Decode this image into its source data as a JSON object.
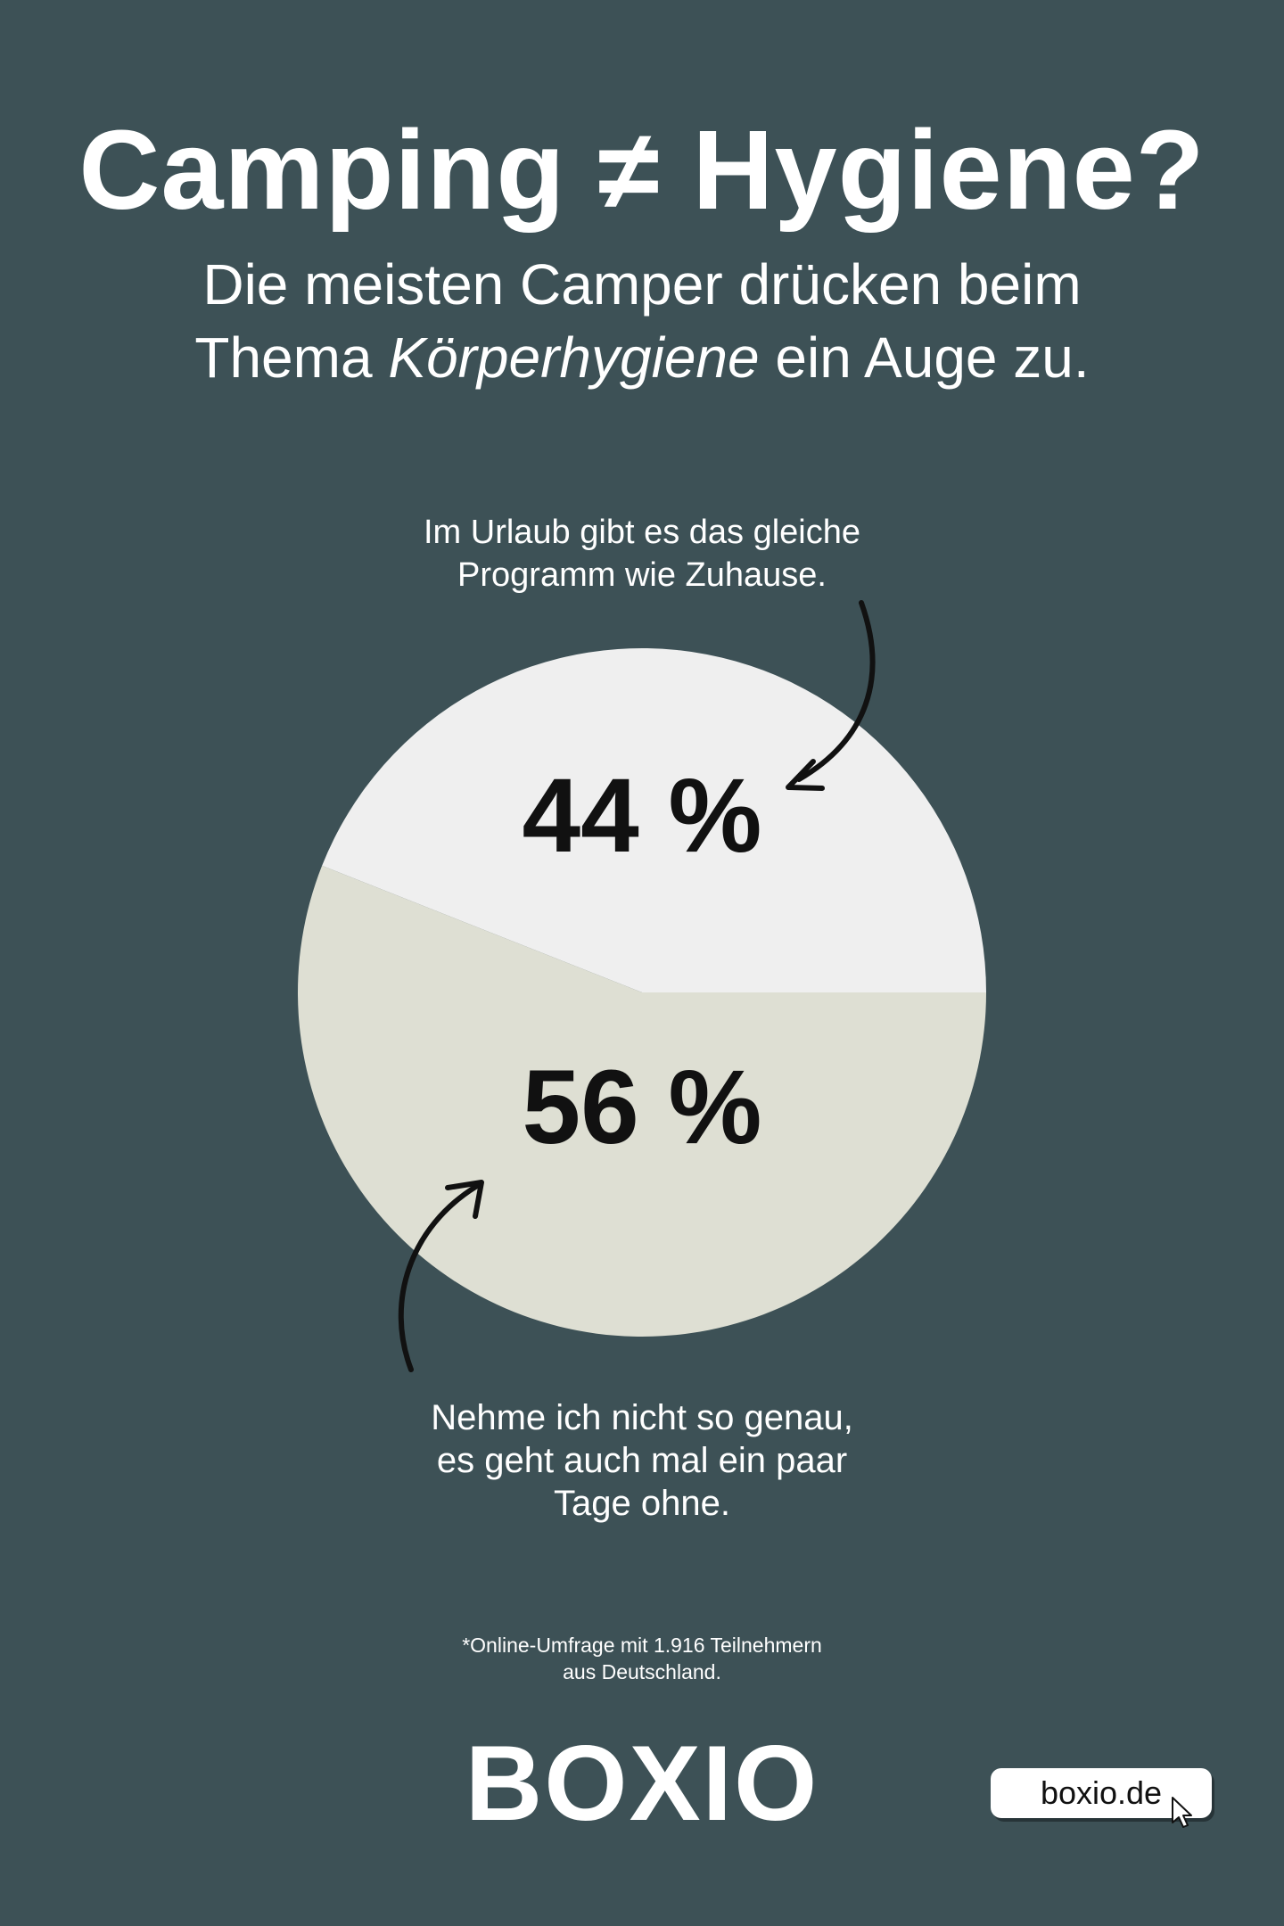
{
  "title": "Camping ≠ Hygiene?",
  "subtitle": {
    "line1": "Die meisten Camper drücken beim",
    "line2_pre": "Thema",
    "line2_em": "Körperhygiene",
    "line2_post": "ein Auge zu."
  },
  "chart_data": {
    "type": "pie",
    "slices": [
      {
        "label": "Im Urlaub gibt es das gleiche Programm wie Zuhause.",
        "value": 44,
        "value_label": "44 %",
        "color": "#efefef"
      },
      {
        "label": "Nehme ich nicht so genau, es geht auch mal ein paar Tage ohne.",
        "value": 56,
        "value_label": "56 %",
        "color": "#dedfd3"
      }
    ]
  },
  "annotations": {
    "top_line1": "Im Urlaub gibt es das gleiche",
    "top_line2": "Programm wie Zuhause.",
    "bottom_line1": "Nehme ich nicht so genau,",
    "bottom_line2": "es geht auch mal ein paar",
    "bottom_line3": "Tage ohne."
  },
  "footnote": {
    "line1": "*Online-Umfrage mit 1.916 Teilnehmern",
    "line2": "aus Deutschland."
  },
  "brand": {
    "logo": "BOXIO",
    "url": "boxio.de"
  },
  "colors": {
    "background": "#3d5156",
    "text": "#ffffff",
    "value_text": "#111111"
  },
  "icons": {
    "cursor": "mouse-pointer-icon",
    "arrows": "curved-arrow-icon"
  }
}
